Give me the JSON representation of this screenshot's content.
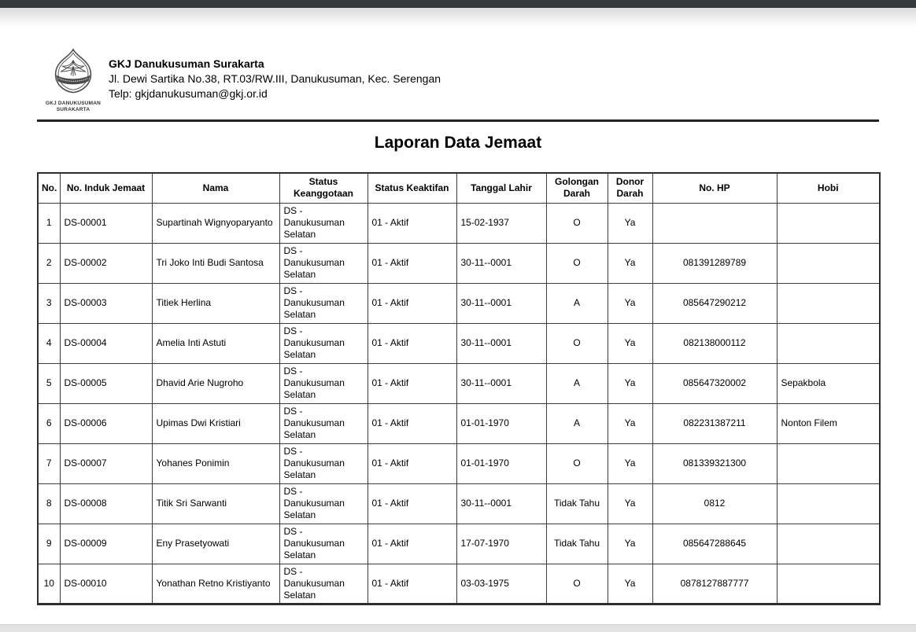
{
  "chrome": {
    "topbar_color": "#36393b",
    "bottombar_color": "#e3e3e3"
  },
  "letterhead": {
    "org_name": "GKJ Danukusuman Surakarta",
    "address": "Jl. Dewi Sartika No.38, RT.03/RW.III, Danukusuman, Kec. Serengan",
    "contact": "Telp: gkjdanukusuman@gkj.or.id",
    "logo_caption_lines": [
      "GKJ DANUKUSUMAN",
      "SURAKARTA"
    ]
  },
  "report": {
    "title": "Laporan Data Jemaat"
  },
  "table": {
    "columns": [
      "No.",
      "No. Induk Jemaat",
      "Nama",
      "Status Keanggotaan",
      "Status Keaktifan",
      "Tanggal Lahir",
      "Golongan Darah",
      "Donor Darah",
      "No. HP",
      "Hobi"
    ],
    "rows": [
      [
        "1",
        "DS-00001",
        "Supartinah Wignyoparyanto",
        "DS - Danukusuman Selatan",
        "01 - Aktif",
        "15-02-1937",
        "O",
        "Ya",
        "",
        ""
      ],
      [
        "2",
        "DS-00002",
        "Tri Joko Inti Budi Santosa",
        "DS - Danukusuman Selatan",
        "01 - Aktif",
        "30-11--0001",
        "O",
        "Ya",
        "081391289789",
        ""
      ],
      [
        "3",
        "DS-00003",
        "Titiek Herlina",
        "DS - Danukusuman Selatan",
        "01 - Aktif",
        "30-11--0001",
        "A",
        "Ya",
        "085647290212",
        ""
      ],
      [
        "4",
        "DS-00004",
        "Amelia Inti Astuti",
        "DS - Danukusuman Selatan",
        "01 - Aktif",
        "30-11--0001",
        "O",
        "Ya",
        "082138000112",
        ""
      ],
      [
        "5",
        "DS-00005",
        "Dhavid Arie Nugroho",
        "DS - Danukusuman Selatan",
        "01 - Aktif",
        "30-11--0001",
        "A",
        "Ya",
        "085647320002",
        "Sepakbola"
      ],
      [
        "6",
        "DS-00006",
        "Upimas Dwi Kristiari",
        "DS - Danukusuman Selatan",
        "01 - Aktif",
        "01-01-1970",
        "A",
        "Ya",
        "082231387211",
        "Nonton Filem"
      ],
      [
        "7",
        "DS-00007",
        "Yohanes Ponimin",
        "DS - Danukusuman Selatan",
        "01 - Aktif",
        "01-01-1970",
        "O",
        "Ya",
        "081339321300",
        ""
      ],
      [
        "8",
        "DS-00008",
        "Titik Sri Sarwanti",
        "DS - Danukusuman Selatan",
        "01 - Aktif",
        "30-11--0001",
        "Tidak Tahu",
        "Ya",
        "0812",
        ""
      ],
      [
        "9",
        "DS-00009",
        "Eny Prasetyowati",
        "DS - Danukusuman Selatan",
        "01 - Aktif",
        "17-07-1970",
        "Tidak Tahu",
        "Ya",
        "085647288645",
        ""
      ],
      [
        "10",
        "DS-00010",
        "Yonathan Retno Kristiyanto",
        "DS - Danukusuman Selatan",
        "01 - Aktif",
        "03-03-1975",
        "O",
        "Ya",
        "0878127887777",
        ""
      ]
    ]
  }
}
